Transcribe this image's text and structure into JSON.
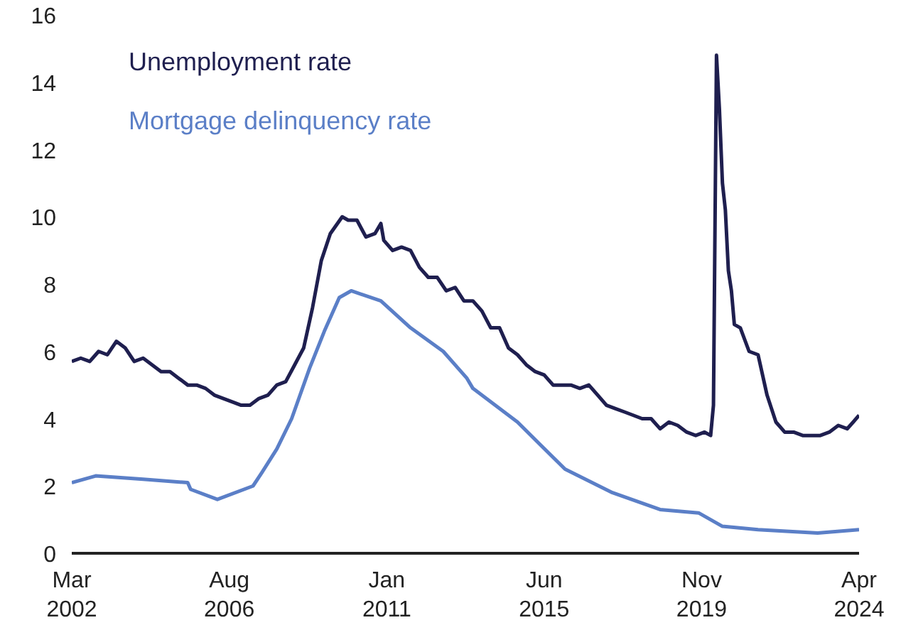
{
  "chart_data": {
    "type": "line",
    "grid": false,
    "marker": "none",
    "line_style": "solid",
    "xlim": [
      "2002-03",
      "2024-04"
    ],
    "xticks": [
      {
        "value": "2002-03",
        "label": "Mar\n2002"
      },
      {
        "value": "2006-08",
        "label": "Aug\n2006"
      },
      {
        "value": "2011-01",
        "label": "Jan\n2011"
      },
      {
        "value": "2015-06",
        "label": "Jun\n2015"
      },
      {
        "value": "2019-11",
        "label": "Nov\n2019"
      },
      {
        "value": "2024-04",
        "label": "Apr\n2024"
      }
    ],
    "ylim": [
      0,
      16
    ],
    "yticks": [
      0,
      2,
      4,
      6,
      8,
      10,
      12,
      14,
      16
    ],
    "series": [
      {
        "name": "Unemployment rate",
        "color": "#1f1f4f",
        "x": [
          "2002-03",
          "2002-06",
          "2002-09",
          "2002-12",
          "2003-03",
          "2003-06",
          "2003-09",
          "2003-12",
          "2004-03",
          "2004-06",
          "2004-09",
          "2004-12",
          "2005-03",
          "2005-06",
          "2005-09",
          "2005-12",
          "2006-03",
          "2006-06",
          "2006-09",
          "2006-12",
          "2007-03",
          "2007-06",
          "2007-09",
          "2007-12",
          "2008-03",
          "2008-06",
          "2008-09",
          "2008-12",
          "2009-03",
          "2009-06",
          "2009-10",
          "2009-12",
          "2010-03",
          "2010-06",
          "2010-09",
          "2010-11",
          "2010-12",
          "2011-03",
          "2011-06",
          "2011-09",
          "2011-12",
          "2012-03",
          "2012-06",
          "2012-09",
          "2012-12",
          "2013-03",
          "2013-06",
          "2013-09",
          "2013-12",
          "2014-03",
          "2014-06",
          "2014-09",
          "2014-12",
          "2015-03",
          "2015-06",
          "2015-09",
          "2015-12",
          "2016-03",
          "2016-06",
          "2016-09",
          "2016-12",
          "2017-03",
          "2017-06",
          "2017-09",
          "2017-12",
          "2018-03",
          "2018-06",
          "2018-09",
          "2018-12",
          "2019-03",
          "2019-06",
          "2019-09",
          "2019-12",
          "2020-02",
          "2020-03",
          "2020-04",
          "2020-05",
          "2020-06",
          "2020-07",
          "2020-08",
          "2020-09",
          "2020-10",
          "2020-12",
          "2021-03",
          "2021-06",
          "2021-09",
          "2021-12",
          "2022-03",
          "2022-06",
          "2022-09",
          "2022-12",
          "2023-03",
          "2023-06",
          "2023-09",
          "2023-12",
          "2024-02",
          "2024-04"
        ],
        "values": [
          5.7,
          5.8,
          5.7,
          6.0,
          5.9,
          6.3,
          6.1,
          5.7,
          5.8,
          5.6,
          5.4,
          5.4,
          5.2,
          5.0,
          5.0,
          4.9,
          4.7,
          4.6,
          4.5,
          4.4,
          4.4,
          4.6,
          4.7,
          5.0,
          5.1,
          5.6,
          6.1,
          7.3,
          8.7,
          9.5,
          10.0,
          9.9,
          9.9,
          9.4,
          9.5,
          9.8,
          9.3,
          9.0,
          9.1,
          9.0,
          8.5,
          8.2,
          8.2,
          7.8,
          7.9,
          7.5,
          7.5,
          7.2,
          6.7,
          6.7,
          6.1,
          5.9,
          5.6,
          5.4,
          5.3,
          5.0,
          5.0,
          5.0,
          4.9,
          5.0,
          4.7,
          4.4,
          4.3,
          4.2,
          4.1,
          4.0,
          4.0,
          3.7,
          3.9,
          3.8,
          3.6,
          3.5,
          3.6,
          3.5,
          4.4,
          14.8,
          13.2,
          11.0,
          10.2,
          8.4,
          7.8,
          6.8,
          6.7,
          6.0,
          5.9,
          4.7,
          3.9,
          3.6,
          3.6,
          3.5,
          3.5,
          3.5,
          3.6,
          3.8,
          3.7,
          3.9,
          4.1
        ]
      },
      {
        "name": "Mortgage delinquency rate",
        "color": "#5b7fc7",
        "x": [
          "2002-03",
          "2002-11",
          "2004-03",
          "2005-06",
          "2005-07",
          "2006-04",
          "2007-04",
          "2007-07",
          "2007-12",
          "2008-05",
          "2008-11",
          "2009-04",
          "2009-09",
          "2010-01",
          "2010-11",
          "2011-09",
          "2012-08",
          "2013-04",
          "2013-06",
          "2014-09",
          "2016-01",
          "2017-05",
          "2018-09",
          "2019-10",
          "2020-06",
          "2021-06",
          "2023-02",
          "2024-04"
        ],
        "values": [
          2.1,
          2.3,
          2.2,
          2.1,
          1.9,
          1.6,
          2.0,
          2.4,
          3.1,
          4.0,
          5.5,
          6.6,
          7.6,
          7.8,
          7.5,
          6.7,
          6.0,
          5.2,
          4.9,
          3.9,
          2.5,
          1.8,
          1.3,
          1.2,
          0.8,
          0.7,
          0.6,
          0.7
        ]
      }
    ]
  }
}
